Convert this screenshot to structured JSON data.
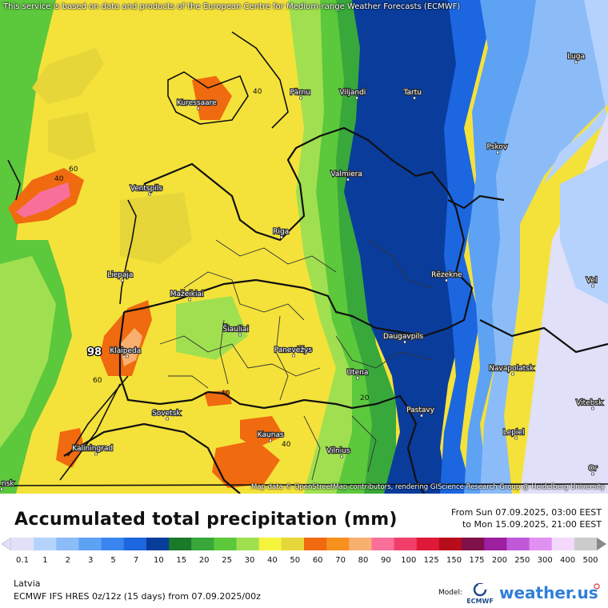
{
  "map": {
    "attribution_top": "This service is based on data and products of the European Centre for Medium-range Weather Forecasts (ECMWF)",
    "attribution_bottom": "Map data © OpenStreetMap contributors, rendering GIScience Research Group @ Heidelberg University",
    "cities": [
      {
        "name": "Luga"
      },
      {
        "name": "Kuressaare"
      },
      {
        "name": "Pärnu"
      },
      {
        "name": "Viljandi"
      },
      {
        "name": "Tartu"
      },
      {
        "name": "Pskov"
      },
      {
        "name": "Valmiera"
      },
      {
        "name": "Ventspils"
      },
      {
        "name": "Riga"
      },
      {
        "name": "Liepaja"
      },
      {
        "name": "Rēzekne"
      },
      {
        "name": "Mažeikiai"
      },
      {
        "name": "Šiauliai"
      },
      {
        "name": "Daugavpils"
      },
      {
        "name": "Klaipeda"
      },
      {
        "name": "Panevėžys"
      },
      {
        "name": "Navapolatsk"
      },
      {
        "name": "Utena"
      },
      {
        "name": "Vitebsk"
      },
      {
        "name": "Sovetsk"
      },
      {
        "name": "Pastavy"
      },
      {
        "name": "Kaunas"
      },
      {
        "name": "Lepiel"
      },
      {
        "name": "Kaliningrad"
      },
      {
        "name": "Vilnius"
      },
      {
        "name": "Vel"
      },
      {
        "name": "Or"
      },
      {
        "name": "nsk"
      }
    ],
    "contour_labels": [
      "40",
      "60",
      "40",
      "60",
      "40",
      "40",
      "20"
    ],
    "max_value_label": "98"
  },
  "legend": {
    "title": "Accumulated total precipitation (mm)",
    "period_from": "From Sun 07.09.2025, 03:00 EEST",
    "period_to": "to Mon 15.09.2025, 21:00 EEST",
    "ticks": [
      "0.1",
      "1",
      "2",
      "3",
      "5",
      "7",
      "10",
      "15",
      "20",
      "25",
      "30",
      "40",
      "50",
      "60",
      "70",
      "80",
      "90",
      "100",
      "125",
      "150",
      "175",
      "200",
      "250",
      "300",
      "400",
      "500"
    ],
    "colors": [
      "#e0e0f8",
      "#b4d2fc",
      "#8cbcf8",
      "#5ea2f4",
      "#3a86ee",
      "#1c66e0",
      "#0a3c9c",
      "#1a7a2a",
      "#38a83a",
      "#5cc83c",
      "#a0e050",
      "#f4f43c",
      "#e6d63a",
      "#f06a10",
      "#f8901e",
      "#f8b070",
      "#f8709a",
      "#f0406a",
      "#e01838",
      "#b80c1c",
      "#80104a",
      "#9c20a0",
      "#c058d8",
      "#e090f0",
      "#f4d8fc",
      "#cccccc"
    ],
    "region": "Latvia",
    "model_info": "ECMWF IFS HRES 0z/12z (15 days) from  07.09.2025/00z",
    "model_label": "Model:",
    "logo_text": "ECMWF",
    "brand": "weather.us"
  }
}
